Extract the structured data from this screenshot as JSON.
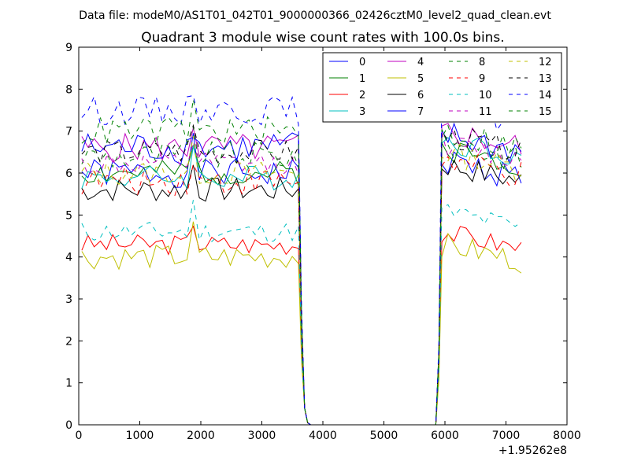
{
  "chart_data": {
    "type": "line",
    "suptitle": "Data file: modeM0/AS1T01_042T01_9000000366_02426cztM0_level2_quad_clean.evt",
    "title": "Quadrant 3 module wise count rates with 100.0s bins.",
    "xlabel": "",
    "ylabel": "",
    "x_offset_label": "+1.95262e8",
    "xlim": [
      0,
      8000
    ],
    "ylim": [
      0,
      9
    ],
    "xticks": [
      0,
      1000,
      2000,
      3000,
      4000,
      5000,
      6000,
      7000,
      8000
    ],
    "yticks": [
      0,
      1,
      2,
      3,
      4,
      5,
      6,
      7,
      8,
      9
    ],
    "grid": false,
    "legend_position": "top-right",
    "legend_columns": 4,
    "segments": [
      {
        "x_start": 50,
        "x_end": 3600,
        "n": 36
      },
      {
        "x_start": 5950,
        "x_end": 7250,
        "n": 14
      }
    ],
    "series": [
      {
        "name": "0",
        "color": "#0000ff",
        "dash": "solid",
        "level": 6.0,
        "post": 6.3,
        "amp": 0.35,
        "seed": 1
      },
      {
        "name": "1",
        "color": "#008000",
        "dash": "solid",
        "level": 6.0,
        "post": 6.6,
        "amp": 0.3,
        "seed": 2
      },
      {
        "name": "2",
        "color": "#ff0000",
        "dash": "solid",
        "level": 4.3,
        "post": 4.6,
        "amp": 0.25,
        "seed": 3
      },
      {
        "name": "3",
        "color": "#00bfbf",
        "dash": "solid",
        "level": 5.9,
        "post": 6.8,
        "amp": 0.3,
        "seed": 4
      },
      {
        "name": "4",
        "color": "#bf00bf",
        "dash": "solid",
        "level": 6.6,
        "post": 7.0,
        "amp": 0.35,
        "seed": 5
      },
      {
        "name": "5",
        "color": "#bfbf00",
        "dash": "solid",
        "level": 4.0,
        "post": 4.3,
        "amp": 0.3,
        "seed": 6
      },
      {
        "name": "6",
        "color": "#000000",
        "dash": "solid",
        "level": 5.6,
        "post": 6.2,
        "amp": 0.3,
        "seed": 7
      },
      {
        "name": "7",
        "color": "#0000ff",
        "dash": "solid",
        "level": 6.6,
        "post": 6.9,
        "amp": 0.4,
        "seed": 8
      },
      {
        "name": "8",
        "color": "#008000",
        "dash": "dashed",
        "level": 6.4,
        "post": 6.7,
        "amp": 0.35,
        "seed": 9
      },
      {
        "name": "9",
        "color": "#ff0000",
        "dash": "dashed",
        "level": 5.8,
        "post": 6.3,
        "amp": 0.35,
        "seed": 10
      },
      {
        "name": "10",
        "color": "#00bfbf",
        "dash": "dashed",
        "level": 4.6,
        "post": 5.1,
        "amp": 0.25,
        "seed": 11
      },
      {
        "name": "11",
        "color": "#bf00bf",
        "dash": "dashed",
        "level": 6.2,
        "post": 6.7,
        "amp": 0.3,
        "seed": 12
      },
      {
        "name": "12",
        "color": "#bfbf00",
        "dash": "dashed",
        "level": 6.0,
        "post": 6.5,
        "amp": 0.3,
        "seed": 13
      },
      {
        "name": "13",
        "color": "#000000",
        "dash": "dashed",
        "level": 6.5,
        "post": 6.9,
        "amp": 0.3,
        "seed": 14
      },
      {
        "name": "14",
        "color": "#0000ff",
        "dash": "dashed",
        "level": 7.5,
        "post": 7.6,
        "amp": 0.35,
        "seed": 15
      },
      {
        "name": "15",
        "color": "#008000",
        "dash": "dashed",
        "level": 7.0,
        "post": 7.0,
        "amp": 0.35,
        "seed": 16
      }
    ]
  }
}
